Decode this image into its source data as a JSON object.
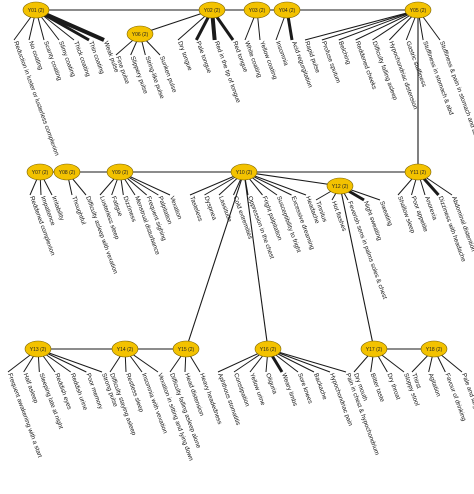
{
  "colors": {
    "node_fill": "#f3c200",
    "node_stroke": "#7a6200",
    "edge": "#1a1a1a",
    "text": "#111111"
  },
  "groups": [
    {
      "id": "Y01 (2)",
      "leaves": [
        {
          "text": "Reduction in luster or lusterless complexion",
          "w": 1
        },
        {
          "text": "No coating",
          "w": 1
        },
        {
          "text": "Scanty coating",
          "w": 1
        },
        {
          "text": "Slimy coating",
          "w": 1
        },
        {
          "text": "Thick coating",
          "w": 1
        },
        {
          "text": "Thin coating",
          "w": 3
        },
        {
          "text": "Weak pulse",
          "w": 4
        }
      ]
    },
    {
      "id": "Y06 (2)",
      "leaves": [
        {
          "text": "Fine pulse",
          "w": 1
        },
        {
          "text": "Slippery pulse",
          "w": 1
        },
        {
          "text": "String-like pulse",
          "w": 1
        },
        {
          "text": "Sunken pulse",
          "w": 1
        }
      ]
    },
    {
      "id": "Y02 (2)",
      "leaves": [
        {
          "text": "Dry tongue",
          "w": 1
        },
        {
          "text": "Pale tongue",
          "w": 3
        },
        {
          "text": "Red in the tip of tongue",
          "w": 4
        },
        {
          "text": "Red tongue",
          "w": 3
        }
      ]
    },
    {
      "id": "Y03 (2)",
      "leaves": [
        {
          "text": "White coating",
          "w": 1
        },
        {
          "text": "Yellow coating",
          "w": 1
        }
      ]
    },
    {
      "id": "Y04 (2)",
      "leaves": [
        {
          "text": "Insomnia",
          "w": 1
        },
        {
          "text": "Acid regurgitation",
          "w": 3
        }
      ]
    },
    {
      "id": "Y05 (2)",
      "leaves": [
        {
          "text": "Rapid pulse",
          "w": 1
        },
        {
          "text": "Profuse sputum",
          "w": 1
        },
        {
          "text": "Belching",
          "w": 1
        },
        {
          "text": "Reddened cheeks",
          "w": 1
        },
        {
          "text": "Difficulty falling asleep",
          "w": 1
        },
        {
          "text": "Hypochondriac distension",
          "w": 1
        },
        {
          "text": "Gastric stuffiness",
          "w": 1
        },
        {
          "text": "Stuffiness in stomach & abd",
          "w": 1
        },
        {
          "text": "Stuffiness & pain in stomach and abd",
          "w": 1
        }
      ]
    },
    {
      "id": "Y07 (2)",
      "leaves": [
        {
          "text": "Reddened complexion",
          "w": 1
        },
        {
          "text": "Impatience",
          "w": 1
        },
        {
          "text": "Irritability",
          "w": 1
        }
      ]
    },
    {
      "id": "Y08 (2)",
      "leaves": [
        {
          "text": "Thoughtful",
          "w": 1
        },
        {
          "text": "Difficulty asleep with vexation",
          "w": 1
        }
      ]
    },
    {
      "id": "Y09 (2)",
      "leaves": [
        {
          "text": "Lusterless sleep",
          "w": 1
        },
        {
          "text": "Fatigue",
          "w": 1
        },
        {
          "text": "Dizziness",
          "w": 1
        },
        {
          "text": "Menstrual disturbance",
          "w": 1
        },
        {
          "text": "Frequent sighing",
          "w": 1
        },
        {
          "text": "Palpitation",
          "w": 1
        },
        {
          "text": "Vexation",
          "w": 1
        }
      ]
    },
    {
      "id": "Y10 (2)",
      "leaves": [
        {
          "text": "Tasteless",
          "w": 1
        },
        {
          "text": "Dyspnea",
          "w": 1
        },
        {
          "text": "Lassitude",
          "w": 1
        },
        {
          "text": "Cold extremities",
          "w": 1
        },
        {
          "text": "Oppression in the chest",
          "w": 1
        },
        {
          "text": "Fright palpitation",
          "w": 1
        },
        {
          "text": "Susceptibility to fright",
          "w": 1
        },
        {
          "text": "Excessive dreaming",
          "w": 1
        },
        {
          "text": "Headache",
          "w": 1
        }
      ]
    },
    {
      "id": "Y12 (2)",
      "leaves": [
        {
          "text": "Tinnitus",
          "w": 1
        },
        {
          "text": "Hot flashes",
          "w": 1
        },
        {
          "text": "Feverish sens in palms soles & chest",
          "w": 1
        },
        {
          "text": "Night sweating",
          "w": 3
        },
        {
          "text": "Sweating",
          "w": 1
        }
      ]
    },
    {
      "id": "Y11 (2)",
      "leaves": [
        {
          "text": "Shallow sleep",
          "w": 1
        },
        {
          "text": "Poor appetite",
          "w": 1
        },
        {
          "text": "Anorexia",
          "w": 1
        },
        {
          "text": "Dizziness with headache",
          "w": 3
        },
        {
          "text": "Abdominal distention",
          "w": 1
        }
      ]
    },
    {
      "id": "Y13 (2)",
      "leaves": [
        {
          "text": "Frequent awakening with a start",
          "w": 1
        },
        {
          "text": "Half asleep",
          "w": 1
        },
        {
          "text": "Sleeping late at night",
          "w": 1
        },
        {
          "text": "Reddish eyes",
          "w": 1
        },
        {
          "text": "Reddish urine",
          "w": 1
        },
        {
          "text": "Poor memory",
          "w": 1
        },
        {
          "text": "Strong pulse",
          "w": 1
        }
      ]
    },
    {
      "id": "Y14 (2)",
      "leaves": [
        {
          "text": "Difficulty staying asleep",
          "w": 1
        },
        {
          "text": "Restless sleep",
          "w": 1
        },
        {
          "text": "Insomnia with vexation",
          "w": 1
        },
        {
          "text": "Vexation in sitting and lying down",
          "w": 1
        }
      ]
    },
    {
      "id": "Y15 (2)",
      "leaves": [
        {
          "text": "Difficulty falling asleep alone",
          "w": 1
        },
        {
          "text": "Head distension",
          "w": 1
        },
        {
          "text": "Heavy headedness",
          "w": 1
        }
      ]
    },
    {
      "id": "Y16 (2)",
      "leaves": [
        {
          "text": "Aphthous stomatitis",
          "w": 1
        },
        {
          "text": "Constipation",
          "w": 1
        },
        {
          "text": "Yellow urine",
          "w": 1
        },
        {
          "text": "Oliguria",
          "w": 1
        },
        {
          "text": "Weary limbs",
          "w": 3
        },
        {
          "text": "Sore knees",
          "w": 1
        },
        {
          "text": "Backache",
          "w": 1
        },
        {
          "text": "Hypochondriac pain",
          "w": 1
        },
        {
          "text": "Pain in chest & hypochondrium",
          "w": 1
        }
      ]
    },
    {
      "id": "Y17 (2)",
      "leaves": [
        {
          "text": "Dry mouth",
          "w": 1
        },
        {
          "text": "Bitter taste",
          "w": 1
        },
        {
          "text": "Dry throat",
          "w": 1
        },
        {
          "text": "Sloppy stool",
          "w": 1
        }
      ]
    },
    {
      "id": "Y18 (2)",
      "leaves": [
        {
          "text": "Thirst",
          "w": 1
        },
        {
          "text": "Agitation",
          "w": 1
        },
        {
          "text": "Favour of drinking",
          "w": 1
        },
        {
          "text": "Pale and large amount of urine",
          "w": 1
        }
      ]
    }
  ]
}
